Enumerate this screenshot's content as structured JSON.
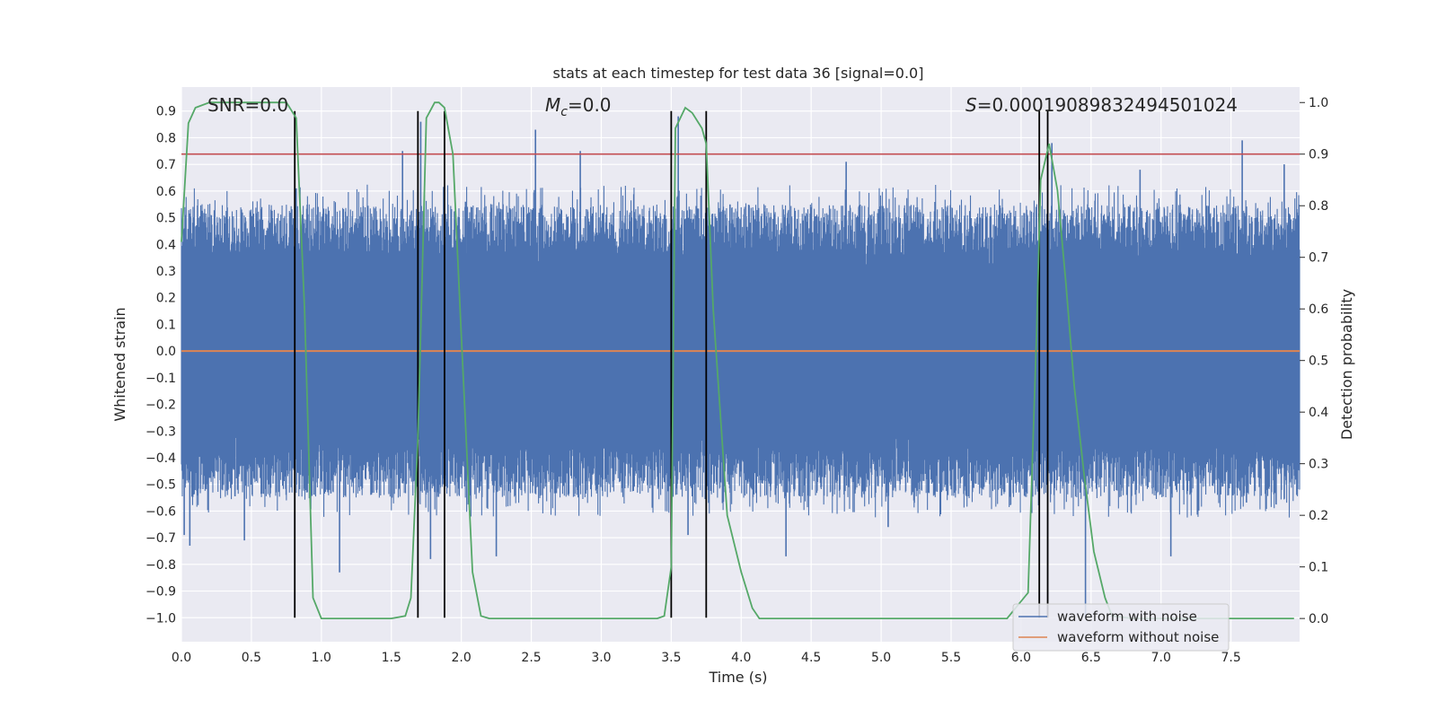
{
  "chart_data": {
    "type": "line",
    "title": "stats at each timestep for test data 36 [signal=0.0]",
    "xlabel": "Time (s)",
    "ylabel": "Whitened strain",
    "y2label": "Detection probability",
    "xlim": [
      0.0,
      7.99
    ],
    "ylim": [
      -1.09,
      0.99
    ],
    "y2lim": [
      -0.045,
      1.03
    ],
    "grid": true,
    "background": "#eaeaf2",
    "x_ticks": [
      "0.0",
      "0.5",
      "1.0",
      "1.5",
      "2.0",
      "2.5",
      "3.0",
      "3.5",
      "4.0",
      "4.5",
      "5.0",
      "5.5",
      "6.0",
      "6.5",
      "7.0",
      "7.5"
    ],
    "x_tick_values": [
      0.0,
      0.5,
      1.0,
      1.5,
      2.0,
      2.5,
      3.0,
      3.5,
      4.0,
      4.5,
      5.0,
      5.5,
      6.0,
      6.5,
      7.0,
      7.5
    ],
    "y_ticks": [
      "0.9",
      "0.8",
      "0.7",
      "0.6",
      "0.5",
      "0.4",
      "0.3",
      "0.2",
      "0.1",
      "0.0",
      "−0.1",
      "−0.2",
      "−0.3",
      "−0.4",
      "−0.5",
      "−0.6",
      "−0.7",
      "−0.8",
      "−0.9",
      "−1.0"
    ],
    "y_tick_values": [
      0.9,
      0.8,
      0.7,
      0.6,
      0.5,
      0.4,
      0.3,
      0.2,
      0.1,
      0.0,
      -0.1,
      -0.2,
      -0.3,
      -0.4,
      -0.5,
      -0.6,
      -0.7,
      -0.8,
      -0.9,
      -1.0
    ],
    "y2_ticks": [
      "1.0",
      "0.9",
      "0.8",
      "0.7",
      "0.6",
      "0.5",
      "0.4",
      "0.3",
      "0.2",
      "0.1",
      "0.0"
    ],
    "y2_tick_values": [
      1.0,
      0.9,
      0.8,
      0.7,
      0.6,
      0.5,
      0.4,
      0.3,
      0.2,
      0.1,
      0.0
    ],
    "annotations": {
      "snr": "SNR=0.0",
      "mc_symbol": "M",
      "mc_sub": "c",
      "mc_value": "=0.0",
      "s_symbol": "S",
      "s_value": "=0.00019089832494501024"
    },
    "series": [
      {
        "name": "waveform with noise",
        "color": "#4c72b0",
        "axis": "left",
        "note": "dense noisy strain, approx. core band ±0.3 with spikes to ~0.9 and ~−1.0",
        "core_amplitude": 0.3,
        "spikes": [
          {
            "x": 0.02,
            "y": -0.69
          },
          {
            "x": 0.06,
            "y": -0.73
          },
          {
            "x": 0.45,
            "y": -0.71
          },
          {
            "x": 0.82,
            "y": 0.61
          },
          {
            "x": 1.13,
            "y": -0.83
          },
          {
            "x": 1.58,
            "y": 0.75
          },
          {
            "x": 1.71,
            "y": 0.86
          },
          {
            "x": 1.78,
            "y": -0.78
          },
          {
            "x": 2.03,
            "y": 0.56
          },
          {
            "x": 2.25,
            "y": -0.77
          },
          {
            "x": 2.53,
            "y": 0.83
          },
          {
            "x": 2.85,
            "y": 0.75
          },
          {
            "x": 3.55,
            "y": 0.88
          },
          {
            "x": 3.62,
            "y": -0.69
          },
          {
            "x": 3.92,
            "y": 0.55
          },
          {
            "x": 4.32,
            "y": -0.77
          },
          {
            "x": 4.75,
            "y": 0.71
          },
          {
            "x": 5.05,
            "y": -0.66
          },
          {
            "x": 6.22,
            "y": 0.78
          },
          {
            "x": 6.46,
            "y": -1.0
          },
          {
            "x": 6.85,
            "y": 0.68
          },
          {
            "x": 7.07,
            "y": -0.77
          },
          {
            "x": 7.58,
            "y": 0.79
          },
          {
            "x": 7.88,
            "y": 0.7
          }
        ]
      },
      {
        "name": "waveform without noise",
        "color": "#dd8452",
        "axis": "left",
        "x": [
          0.0,
          7.99
        ],
        "y": [
          0.0,
          0.0
        ]
      },
      {
        "name": "detection probability",
        "color": "#55a868",
        "axis": "right",
        "x": [
          0.0,
          0.05,
          0.1,
          0.2,
          0.3,
          0.4,
          0.5,
          0.6,
          0.7,
          0.75,
          0.82,
          0.88,
          0.94,
          1.0,
          1.1,
          1.3,
          1.5,
          1.6,
          1.64,
          1.69,
          1.75,
          1.81,
          1.84,
          1.88,
          1.94,
          2.0,
          2.08,
          2.14,
          2.2,
          2.4,
          2.6,
          2.8,
          3.0,
          3.2,
          3.4,
          3.45,
          3.5,
          3.53,
          3.6,
          3.65,
          3.72,
          3.75,
          3.8,
          3.9,
          4.0,
          4.08,
          4.13,
          4.2,
          4.4,
          4.6,
          4.8,
          5.0,
          5.5,
          5.9,
          6.05,
          6.11,
          6.14,
          6.2,
          6.26,
          6.32,
          6.38,
          6.45,
          6.52,
          6.6,
          6.65,
          6.8,
          7.0,
          7.2,
          7.4,
          7.6,
          7.8,
          7.95
        ],
        "y": [
          0.73,
          0.96,
          0.99,
          1.0,
          1.0,
          1.0,
          1.0,
          1.0,
          1.0,
          1.0,
          0.97,
          0.6,
          0.04,
          0.0,
          0.0,
          0.0,
          0.0,
          0.005,
          0.04,
          0.35,
          0.97,
          1.0,
          1.0,
          0.99,
          0.9,
          0.55,
          0.09,
          0.005,
          0.0,
          0.0,
          0.0,
          0.0,
          0.0,
          0.0,
          0.0,
          0.005,
          0.1,
          0.95,
          0.99,
          0.98,
          0.95,
          0.92,
          0.6,
          0.2,
          0.09,
          0.02,
          0.0,
          0.0,
          0.0,
          0.0,
          0.0,
          0.0,
          0.0,
          0.0,
          0.05,
          0.55,
          0.85,
          0.92,
          0.83,
          0.65,
          0.45,
          0.28,
          0.13,
          0.04,
          0.005,
          0.0,
          0.0,
          0.0,
          0.0,
          0.0,
          0.0,
          0.0
        ]
      }
    ],
    "threshold": {
      "value": 0.9,
      "axis": "right",
      "color": "#c44e52"
    },
    "vlines": {
      "color": "#000000",
      "x": [
        0.81,
        1.69,
        1.88,
        3.5,
        3.75,
        6.13,
        6.19
      ],
      "y_range": [
        -1.0,
        0.9
      ]
    },
    "legend": {
      "position": "bottom-right",
      "entries": [
        "waveform with noise",
        "waveform without noise"
      ]
    }
  }
}
